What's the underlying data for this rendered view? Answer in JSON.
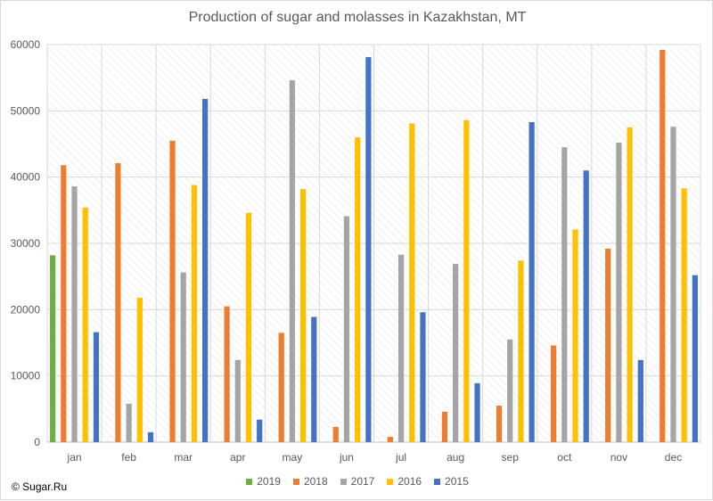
{
  "chart_data": {
    "type": "bar",
    "title": "Production of sugar and molasses in Kazakhstan, MT",
    "categories": [
      "jan",
      "feb",
      "mar",
      "apr",
      "may",
      "jun",
      "jul",
      "aug",
      "sep",
      "oct",
      "nov",
      "dec"
    ],
    "ylim": [
      0,
      60000
    ],
    "yticks": [
      "0",
      "10000",
      "20000",
      "30000",
      "40000",
      "50000",
      "60000"
    ],
    "grid": true,
    "legend_position": "bottom",
    "series": [
      {
        "name": "2019",
        "color": "#70ad47",
        "values": [
          28200,
          null,
          null,
          null,
          null,
          null,
          null,
          null,
          null,
          null,
          null,
          null
        ]
      },
      {
        "name": "2018",
        "color": "#ed7d31",
        "values": [
          41800,
          42100,
          45500,
          20500,
          16500,
          2300,
          800,
          4600,
          5500,
          14600,
          29200,
          59200
        ]
      },
      {
        "name": "2017",
        "color": "#a5a5a5",
        "values": [
          38600,
          5800,
          25600,
          12400,
          54600,
          34100,
          28300,
          26900,
          15500,
          44500,
          45200,
          47600
        ]
      },
      {
        "name": "2016",
        "color": "#ffc000",
        "values": [
          35400,
          21800,
          38800,
          34600,
          38200,
          46000,
          48100,
          48600,
          27400,
          32100,
          47500,
          38300
        ]
      },
      {
        "name": "2015",
        "color": "#4472c4",
        "values": [
          16600,
          1500,
          51800,
          3400,
          18900,
          58100,
          19600,
          8900,
          48300,
          41000,
          12400,
          25200
        ]
      }
    ]
  },
  "footer": {
    "copyright": "© Sugar.Ru"
  }
}
